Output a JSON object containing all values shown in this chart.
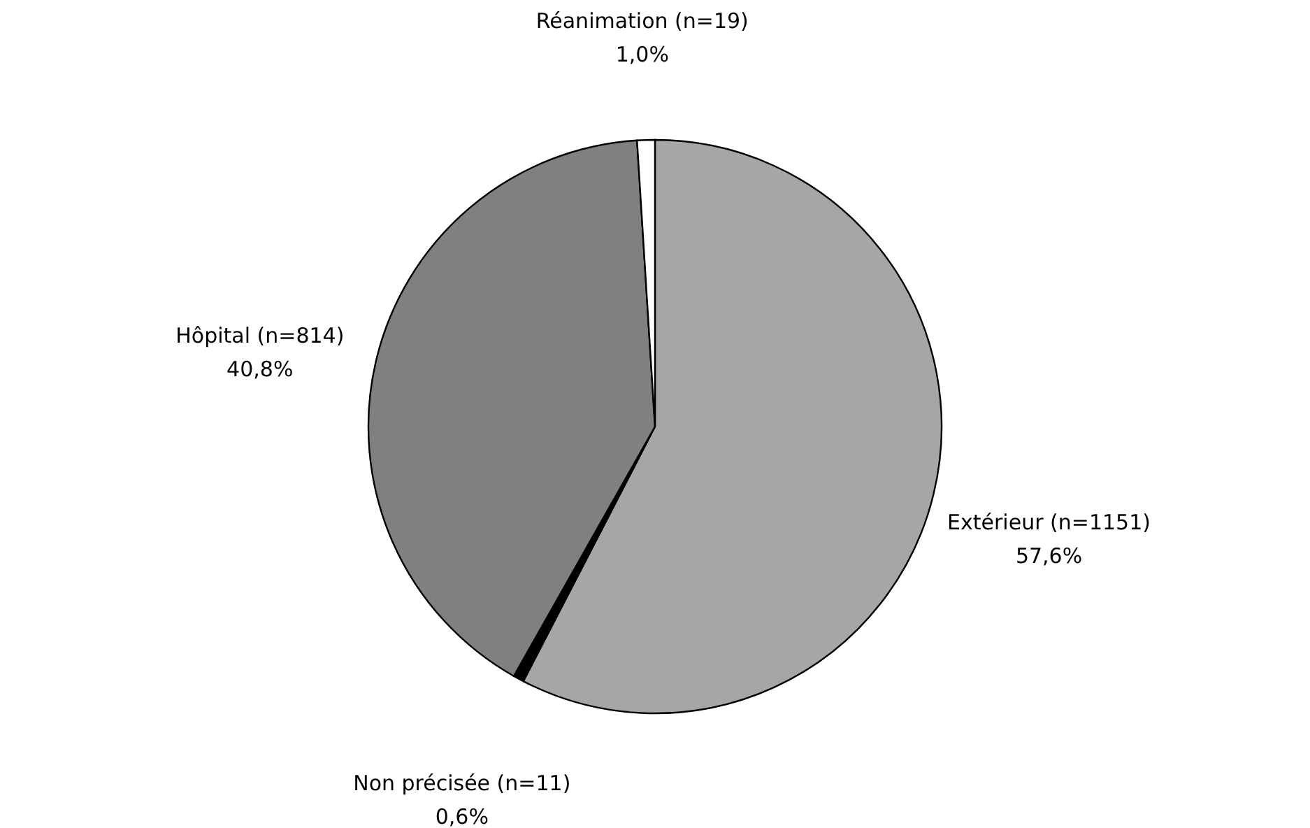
{
  "chart_data": {
    "type": "pie",
    "categories": [
      "Extérieur (n=1151)",
      "Non précisée (n=11)",
      "Hôpital (n=814)",
      "Réanimation (n=19)"
    ],
    "values": [
      57.6,
      0.6,
      40.8,
      1.0
    ],
    "value_labels": [
      "57,6%",
      "0,6%",
      "40,8%",
      "1,0%"
    ],
    "colors": [
      "#a6a6a6",
      "#000000",
      "#808080",
      "#ffffff"
    ],
    "legend": false
  }
}
